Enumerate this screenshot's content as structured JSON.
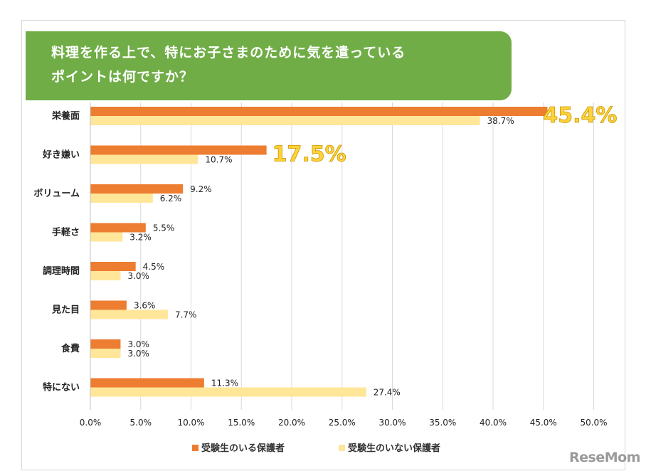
{
  "chart_data": {
    "type": "bar",
    "orientation": "horizontal",
    "title": [
      "料理を作る上で、特にお子さまのために気を遣っている",
      "ポイントは何ですか？"
    ],
    "categories": [
      "栄養面",
      "好き嫌い",
      "ボリューム",
      "手軽さ",
      "調理時間",
      "見た目",
      "食費",
      "特にない"
    ],
    "series": [
      {
        "name": "受験生のいる保護者",
        "color": "#ed7d31",
        "values": [
          45.4,
          17.5,
          9.2,
          5.5,
          4.5,
          3.6,
          3.0,
          11.3
        ],
        "labels": [
          "45.4%",
          "17.5%",
          "9.2%",
          "5.5%",
          "4.5%",
          "3.6%",
          "3.0%",
          "11.3%"
        ]
      },
      {
        "name": "受験生のいない保護者",
        "color": "#ffe699",
        "values": [
          38.7,
          10.7,
          6.2,
          3.2,
          3.0,
          7.7,
          3.0,
          27.4
        ],
        "labels": [
          "38.7%",
          "10.7%",
          "6.2%",
          "3.2%",
          "3.0%",
          "7.7%",
          "3.0%",
          "27.4%"
        ]
      }
    ],
    "highlight_labels": [
      0,
      1
    ],
    "xlim": [
      0,
      50
    ],
    "xticks": [
      "0.0%",
      "5.0%",
      "10.0%",
      "15.0%",
      "20.0%",
      "25.0%",
      "30.0%",
      "35.0%",
      "40.0%",
      "45.0%",
      "50.0%"
    ],
    "grid": "vertical",
    "legend_position": "bottom"
  },
  "watermark": "ReseMom"
}
